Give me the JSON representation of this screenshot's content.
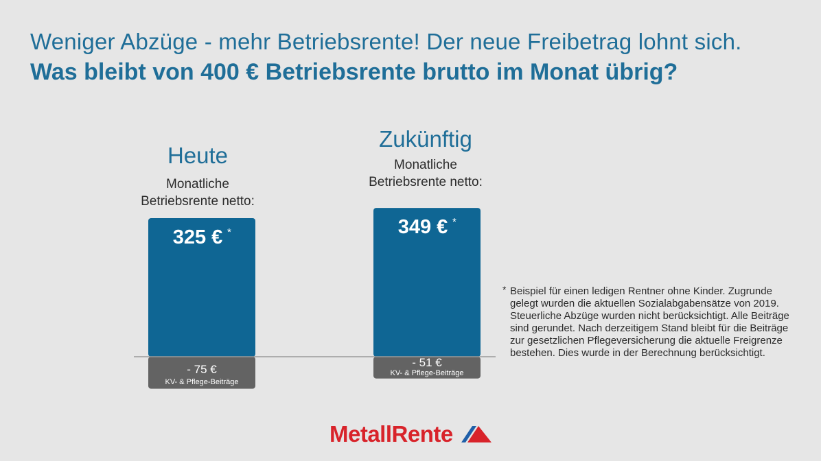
{
  "header": {
    "title": "Weniger Abzüge - mehr Betriebsrente! Der neue Freibetrag lohnt sich.",
    "subtitle": "Was bleibt von 400 € Betriebsrente brutto im Monat übrig?"
  },
  "columns": [
    {
      "heading": "Heute",
      "sublabel_line1": "Monatliche",
      "sublabel_line2": "Betriebsrente netto:"
    },
    {
      "heading": "Zukünftig",
      "sublabel_line1": "Monatliche",
      "sublabel_line2": "Betriebsrente netto:"
    }
  ],
  "chart_data": {
    "type": "bar",
    "categories": [
      "Heute",
      "Zukünftig"
    ],
    "gross": 400,
    "series": [
      {
        "values": [
          325,
          349
        ],
        "labels": [
          "325 €",
          "349 €"
        ],
        "marker": "*"
      },
      {
        "values": [
          -75,
          -51
        ],
        "labels": [
          "- 75 €",
          "- 51 €"
        ],
        "category_label": "KV- & Pflege-Beiträge"
      }
    ],
    "ylim": [
      -75,
      349
    ],
    "colors": {
      "net": "#0f6694",
      "deduction": "#636363",
      "baseline": "#9a9a9a"
    }
  },
  "footnote": {
    "marker": "*",
    "text": "Beispiel für einen ledigen Rentner ohne Kinder. Zugrunde gelegt wurden die aktuellen Sozialabgabensätze von 2019. Steuerliche Abzüge wurden nicht berücksichtigt. Alle Beiträge sind gerundet. Nach derzeitigem Stand bleibt für die Beiträge zur gesetzlichen Pflegeversicherung die aktuelle Freigrenze bestehen. Dies wurde in der Berechnung berücksichtigt."
  },
  "logo": {
    "text": "MetallRente",
    "colors": {
      "text": "#d8232a",
      "mark_red": "#d8232a",
      "mark_blue": "#1f5fa8"
    }
  }
}
